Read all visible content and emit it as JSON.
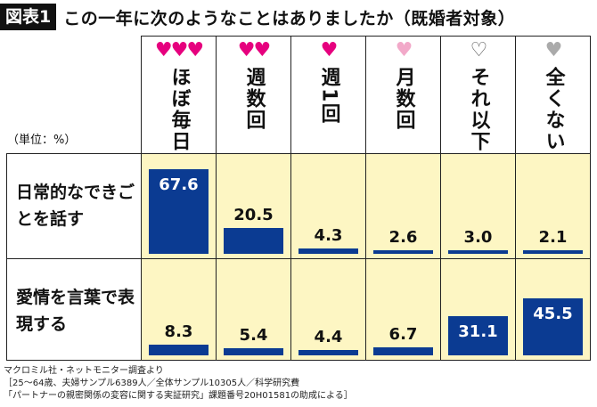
{
  "title": {
    "badge": "図表1",
    "text": "この一年に次のようなことはありましたか（既婚者対象）"
  },
  "unit": "（単位：%）",
  "source": [
    "マクロミル社・ネットモニター調査より",
    "［25〜64歳、夫婦サンプル6389人／全体サンプル10305人／科学研究費",
    "「パートナーの親密関係の変容に関する実証研究」課題番号20H01581の助成による］"
  ],
  "chart_data": {
    "type": "bar",
    "categories": [
      "ほぼ毎日",
      "週数回",
      "週1回",
      "月数回",
      "それ以下",
      "全くない"
    ],
    "category_hearts": [
      {
        "glyph": "♥♥♥",
        "color": "#e6007e"
      },
      {
        "glyph": "♥♥",
        "color": "#e6007e"
      },
      {
        "glyph": "♥",
        "color": "#e6007e"
      },
      {
        "glyph": "♥",
        "color": "#f2a9c9"
      },
      {
        "glyph": "♡",
        "color": "#555555"
      },
      {
        "glyph": "♥",
        "color": "#aaaaaa"
      }
    ],
    "series": [
      {
        "name": "日常的なできごとを話す",
        "values": [
          67.6,
          20.5,
          4.3,
          2.6,
          3.0,
          2.1
        ]
      },
      {
        "name": "愛情を言葉で表現する",
        "values": [
          8.3,
          5.4,
          4.4,
          6.7,
          31.1,
          45.5
        ]
      }
    ],
    "unit": "%",
    "bar_color": "#0b3b92",
    "cell_color": "#fdf6c3"
  }
}
